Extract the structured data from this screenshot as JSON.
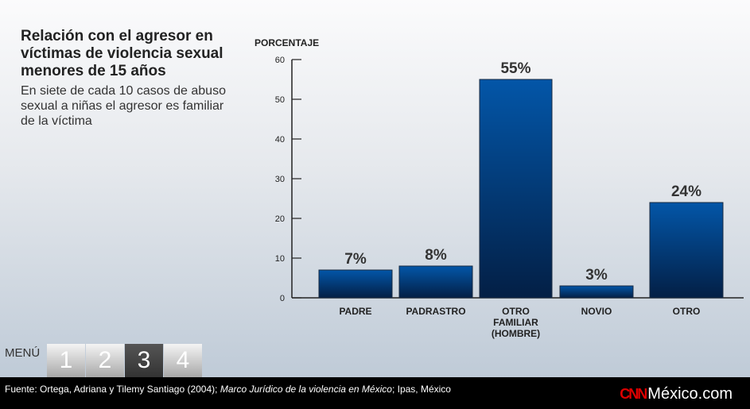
{
  "title": "Relación con el agresor en víctimas de violencia sexual menores de 15 años",
  "subtitle": "En siete de cada 10 casos de abuso sexual a niñas el agresor es familiar de la víctima",
  "chart_data": {
    "type": "bar",
    "ylabel": "PORCENTAJE",
    "ylim": [
      0,
      60
    ],
    "yticks": [
      0,
      10,
      20,
      30,
      40,
      50,
      60
    ],
    "categories": [
      "PADRE",
      "PADRASTRO",
      "OTRO FAMILIAR (HOMBRE)",
      "NOVIO",
      "OTRO"
    ],
    "values": [
      7,
      8,
      55,
      3,
      24
    ],
    "data_labels": [
      "7%",
      "8%",
      "55%",
      "3%",
      "24%"
    ],
    "bar_color": "#0d3f80",
    "grid": false
  },
  "menu": {
    "label": "MENÚ",
    "items": [
      "1",
      "2",
      "3",
      "4"
    ],
    "active": "3"
  },
  "footer": {
    "source_prefix": "Fuente: Ortega, Adriana y Tilemy Santiago (2004); ",
    "source_italic": "Marco Jurídico de la violencia en México",
    "source_suffix": "; Ipas, México",
    "logo_cnn": "CNN",
    "logo_text": "México.com"
  }
}
